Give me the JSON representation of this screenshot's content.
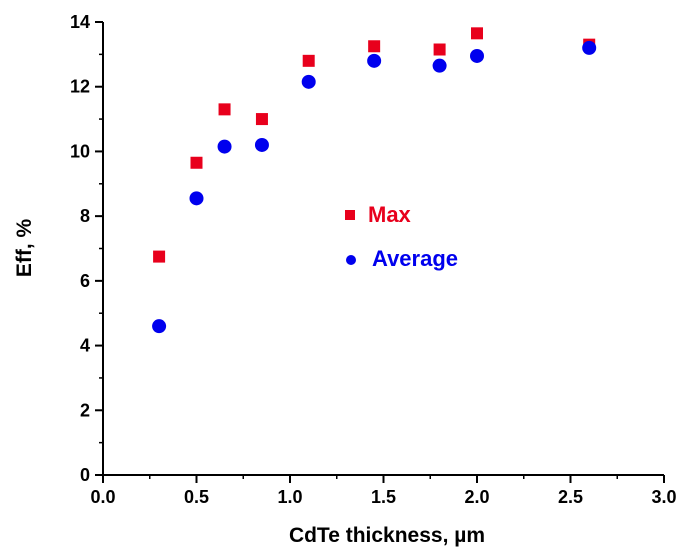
{
  "chart_data": {
    "type": "scatter",
    "xlabel": "CdTe thickness, µm",
    "ylabel": "Eff, %",
    "xlim": [
      0.0,
      3.0
    ],
    "ylim": [
      0,
      14
    ],
    "xticks": [
      "0.0",
      "0.5",
      "1.0",
      "1.5",
      "2.0",
      "2.5",
      "3.0"
    ],
    "yticks": [
      "0",
      "2",
      "4",
      "6",
      "8",
      "10",
      "12",
      "14"
    ],
    "grid": false,
    "legend_position": "center",
    "series": [
      {
        "name": "Max",
        "marker": "square",
        "color": "#e8001c",
        "x": [
          0.3,
          0.5,
          0.65,
          0.85,
          1.1,
          1.45,
          1.8,
          2.0,
          2.6
        ],
        "y": [
          6.75,
          9.65,
          11.3,
          11.0,
          12.8,
          13.25,
          13.15,
          13.65,
          13.3
        ]
      },
      {
        "name": "Average",
        "marker": "circle",
        "color": "#0000ee",
        "x": [
          0.3,
          0.5,
          0.65,
          0.85,
          1.1,
          1.45,
          1.8,
          2.0,
          2.6
        ],
        "y": [
          4.6,
          8.55,
          10.15,
          10.2,
          12.15,
          12.8,
          12.65,
          12.95,
          13.2
        ]
      }
    ]
  }
}
